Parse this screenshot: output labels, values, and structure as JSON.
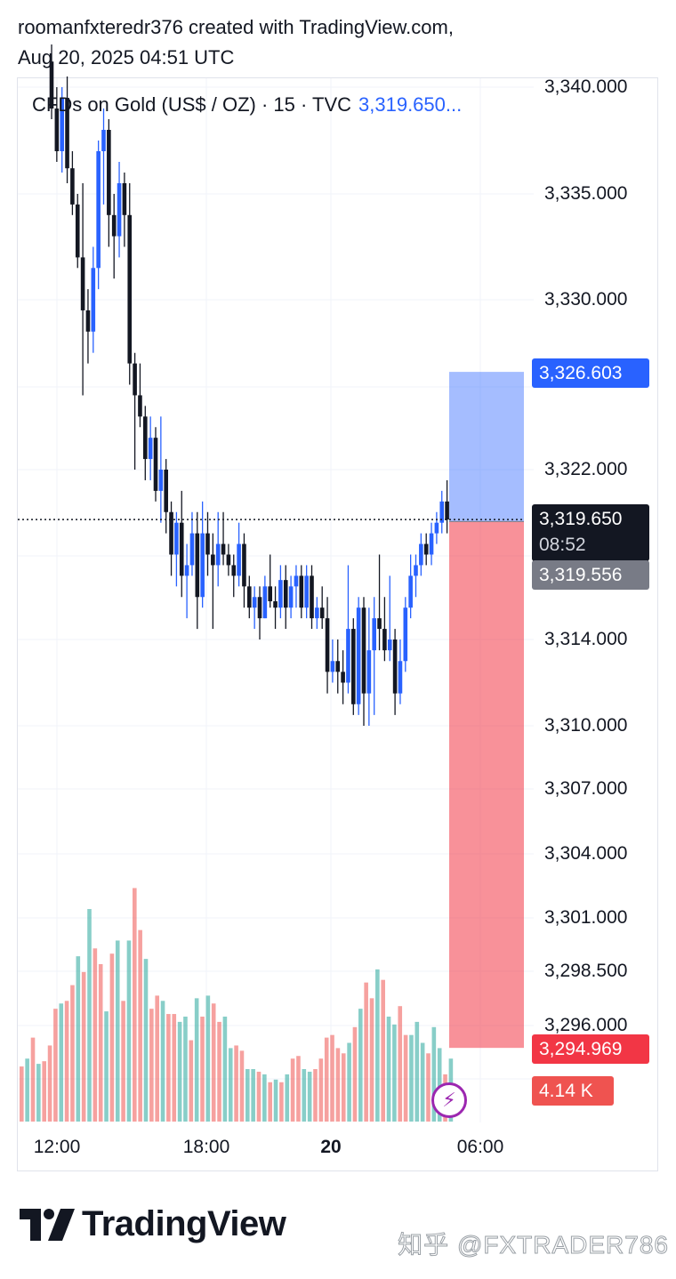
{
  "header": {
    "line1": "roomanfxteredr376 created with TradingView.com,",
    "line2": "Aug 20, 2025 04:51 UTC"
  },
  "legend": {
    "symbol": "CFDs on Gold (US$ / OZ) · 15 · TVC",
    "price": "3,319.650..."
  },
  "price_axis": [
    "3,340.000",
    "3,335.000",
    "3,330.000",
    "3,322.000",
    "3,314.000",
    "3,310.000",
    "3,307.000",
    "3,304.000",
    "3,301.000",
    "3,298.500",
    "3,296.000"
  ],
  "time_axis": [
    {
      "label": "12:00",
      "bold": false
    },
    {
      "label": "18:00",
      "bold": false
    },
    {
      "label": "20",
      "bold": true
    },
    {
      "label": "06:00",
      "bold": false
    }
  ],
  "tags": {
    "target": "3,326.603",
    "last_price": "3,319.650",
    "countdown": "08:52",
    "entry": "3,319.556",
    "stop": "3,294.969",
    "volume": "4.14 K"
  },
  "colors": {
    "up": "#2962ff",
    "down": "#131722",
    "vol_up": "#26a69a",
    "vol_down": "#ef5350",
    "profit_zone": "#2962ff",
    "loss_zone": "#f23645"
  },
  "icons": {
    "lightning": "lightning-icon",
    "brand": "tradingview-logo-icon"
  },
  "branding": {
    "logo_text": "TradingView",
    "watermark": "知乎 @FXTRADER786"
  },
  "chart_data": {
    "type": "candlestick",
    "title": "CFDs on Gold (US$ / OZ) · 15 · TVC",
    "interval": "15",
    "last_price": 3319.65,
    "price_axis_ticks": [
      3340,
      3335,
      3330,
      3322,
      3314,
      3310,
      3307,
      3304,
      3301,
      3298.5,
      3296
    ],
    "time_axis_ticks": [
      "12:00",
      "18:00",
      "20",
      "06:00"
    ],
    "position_tool": {
      "target": 3326.603,
      "entry": 3319.556,
      "stop": 3294.969
    },
    "candles": [
      [
        3341.2,
        3342.0,
        3338.5,
        3339.0
      ],
      [
        3339.0,
        3340.0,
        3336.5,
        3337.0
      ],
      [
        3337.0,
        3340.0,
        3336.0,
        3339.5
      ],
      [
        3339.5,
        3340.5,
        3335.5,
        3336.2
      ],
      [
        3336.2,
        3337.0,
        3334.0,
        3334.5
      ],
      [
        3334.5,
        3335.0,
        3331.5,
        3332.0
      ],
      [
        3332.0,
        3335.5,
        3325.5,
        3329.5
      ],
      [
        3329.5,
        3330.5,
        3327.0,
        3328.5
      ],
      [
        3328.5,
        3332.5,
        3327.5,
        3331.5
      ],
      [
        3331.5,
        3337.5,
        3330.5,
        3337.0
      ],
      [
        3337.0,
        3339.0,
        3334.5,
        3338.0
      ],
      [
        3338.0,
        3338.5,
        3332.5,
        3334.0
      ],
      [
        3334.0,
        3335.0,
        3331.0,
        3333.0
      ],
      [
        3333.0,
        3336.5,
        3332.0,
        3335.5
      ],
      [
        3335.5,
        3336.0,
        3332.5,
        3334.0
      ],
      [
        3334.0,
        3335.5,
        3326.0,
        3327.0
      ],
      [
        3327.0,
        3327.5,
        3322.0,
        3325.5
      ],
      [
        3325.5,
        3327.0,
        3324.0,
        3324.5
      ],
      [
        3324.5,
        3325.0,
        3321.5,
        3322.5
      ],
      [
        3322.5,
        3324.5,
        3321.5,
        3323.5
      ],
      [
        3323.5,
        3324.0,
        3320.5,
        3321.0
      ],
      [
        3321.0,
        3324.5,
        3319.5,
        3322.0
      ],
      [
        3322.0,
        3322.5,
        3319.0,
        3320.0
      ],
      [
        3320.0,
        3320.5,
        3317.0,
        3318.0
      ],
      [
        3318.0,
        3320.0,
        3316.5,
        3319.5
      ],
      [
        3319.5,
        3321.0,
        3316.0,
        3317.0
      ],
      [
        3317.0,
        3318.5,
        3315.0,
        3317.5
      ],
      [
        3317.5,
        3320.0,
        3317.0,
        3319.0
      ],
      [
        3319.0,
        3320.0,
        3314.5,
        3316.0
      ],
      [
        3316.0,
        3320.5,
        3315.5,
        3319.0
      ],
      [
        3319.0,
        3320.0,
        3317.0,
        3318.0
      ],
      [
        3318.0,
        3319.0,
        3314.5,
        3317.5
      ],
      [
        3317.5,
        3320.0,
        3316.5,
        3318.5
      ],
      [
        3318.5,
        3320.0,
        3317.5,
        3318.0
      ],
      [
        3318.0,
        3318.5,
        3317.0,
        3317.5
      ],
      [
        3317.5,
        3318.0,
        3316.0,
        3317.0
      ],
      [
        3317.0,
        3319.5,
        3316.5,
        3318.5
      ],
      [
        3318.5,
        3319.0,
        3315.5,
        3316.5
      ],
      [
        3316.5,
        3317.0,
        3315.0,
        3315.5
      ],
      [
        3315.5,
        3316.5,
        3314.5,
        3316.0
      ],
      [
        3316.0,
        3316.5,
        3314.0,
        3315.0
      ],
      [
        3315.0,
        3317.0,
        3315.0,
        3316.5
      ],
      [
        3316.5,
        3318.0,
        3315.5,
        3315.8
      ],
      [
        3315.8,
        3316.5,
        3314.5,
        3315.5
      ],
      [
        3315.5,
        3317.5,
        3315.0,
        3316.8
      ],
      [
        3316.8,
        3317.5,
        3314.5,
        3315.5
      ],
      [
        3315.5,
        3317.0,
        3315.0,
        3316.5
      ],
      [
        3316.5,
        3317.5,
        3315.5,
        3317.0
      ],
      [
        3317.0,
        3317.5,
        3315.0,
        3315.5
      ],
      [
        3315.5,
        3317.5,
        3315.0,
        3317.0
      ],
      [
        3317.0,
        3317.5,
        3314.5,
        3315.0
      ],
      [
        3315.0,
        3316.0,
        3314.5,
        3315.5
      ],
      [
        3315.5,
        3316.5,
        3314.5,
        3315.0
      ],
      [
        3315.0,
        3316.0,
        3311.5,
        3312.5
      ],
      [
        3312.5,
        3314.0,
        3312.0,
        3313.0
      ],
      [
        3313.0,
        3314.0,
        3311.5,
        3312.5
      ],
      [
        3312.5,
        3313.5,
        3311.0,
        3312.0
      ],
      [
        3312.0,
        3317.5,
        3311.5,
        3314.5
      ],
      [
        3314.5,
        3315.0,
        3310.5,
        3311.0
      ],
      [
        3311.0,
        3316.0,
        3310.5,
        3315.5
      ],
      [
        3315.5,
        3316.0,
        3310.0,
        3311.5
      ],
      [
        3311.5,
        3315.5,
        3310.0,
        3313.5
      ],
      [
        3313.5,
        3316.0,
        3310.5,
        3315.0
      ],
      [
        3315.0,
        3318.0,
        3313.5,
        3314.5
      ],
      [
        3314.5,
        3316.0,
        3313.0,
        3313.5
      ],
      [
        3313.5,
        3317.0,
        3313.0,
        3314.0
      ],
      [
        3314.0,
        3314.5,
        3310.5,
        3311.5
      ],
      [
        3311.5,
        3314.0,
        3311.0,
        3313.0
      ],
      [
        3313.0,
        3316.0,
        3312.5,
        3315.5
      ],
      [
        3315.5,
        3318.0,
        3315.0,
        3317.0
      ],
      [
        3317.0,
        3318.0,
        3316.0,
        3317.5
      ],
      [
        3317.5,
        3319.0,
        3317.0,
        3318.5
      ],
      [
        3318.5,
        3319.0,
        3317.5,
        3318.0
      ],
      [
        3318.0,
        3319.5,
        3317.5,
        3319.0
      ],
      [
        3319.0,
        3320.0,
        3318.5,
        3319.5
      ],
      [
        3319.5,
        3321.0,
        3319.0,
        3320.5
      ],
      [
        3320.5,
        3321.5,
        3319.0,
        3319.65
      ]
    ],
    "volume_scale_label": "4.14 K",
    "volume": [
      [
        0.21,
        0
      ],
      [
        0.24,
        1
      ],
      [
        0.32,
        0
      ],
      [
        0.22,
        1
      ],
      [
        0.23,
        0
      ],
      [
        0.29,
        0
      ],
      [
        0.43,
        0
      ],
      [
        0.45,
        1
      ],
      [
        0.46,
        0
      ],
      [
        0.52,
        0
      ],
      [
        0.63,
        1
      ],
      [
        0.57,
        0
      ],
      [
        0.81,
        1
      ],
      [
        0.66,
        0
      ],
      [
        0.6,
        0
      ],
      [
        0.42,
        1
      ],
      [
        0.64,
        0
      ],
      [
        0.69,
        1
      ],
      [
        0.46,
        0
      ],
      [
        0.69,
        1
      ],
      [
        0.89,
        0
      ],
      [
        0.73,
        0
      ],
      [
        0.62,
        1
      ],
      [
        0.43,
        0
      ],
      [
        0.48,
        0
      ],
      [
        0.46,
        1
      ],
      [
        0.41,
        0
      ],
      [
        0.41,
        0
      ],
      [
        0.38,
        1
      ],
      [
        0.4,
        1
      ],
      [
        0.31,
        0
      ],
      [
        0.47,
        1
      ],
      [
        0.4,
        0
      ],
      [
        0.48,
        1
      ],
      [
        0.45,
        0
      ],
      [
        0.38,
        0
      ],
      [
        0.4,
        1
      ],
      [
        0.28,
        1
      ],
      [
        0.29,
        0
      ],
      [
        0.27,
        0
      ],
      [
        0.2,
        1
      ],
      [
        0.2,
        1
      ],
      [
        0.19,
        0
      ],
      [
        0.18,
        1
      ],
      [
        0.15,
        0
      ],
      [
        0.16,
        1
      ],
      [
        0.15,
        0
      ],
      [
        0.18,
        1
      ],
      [
        0.24,
        0
      ],
      [
        0.25,
        0
      ],
      [
        0.2,
        1
      ],
      [
        0.19,
        1
      ],
      [
        0.2,
        0
      ],
      [
        0.24,
        0
      ],
      [
        0.32,
        0
      ],
      [
        0.33,
        0
      ],
      [
        0.28,
        0
      ],
      [
        0.26,
        0
      ],
      [
        0.3,
        1
      ],
      [
        0.36,
        0
      ],
      [
        0.43,
        1
      ],
      [
        0.53,
        0
      ],
      [
        0.47,
        0
      ],
      [
        0.58,
        1
      ],
      [
        0.54,
        0
      ],
      [
        0.4,
        1
      ],
      [
        0.37,
        1
      ],
      [
        0.44,
        0
      ],
      [
        0.33,
        0
      ],
      [
        0.33,
        1
      ],
      [
        0.38,
        1
      ],
      [
        0.3,
        1
      ],
      [
        0.26,
        0
      ],
      [
        0.36,
        1
      ],
      [
        0.28,
        1
      ],
      [
        0.18,
        0
      ],
      [
        0.24,
        1
      ]
    ]
  }
}
